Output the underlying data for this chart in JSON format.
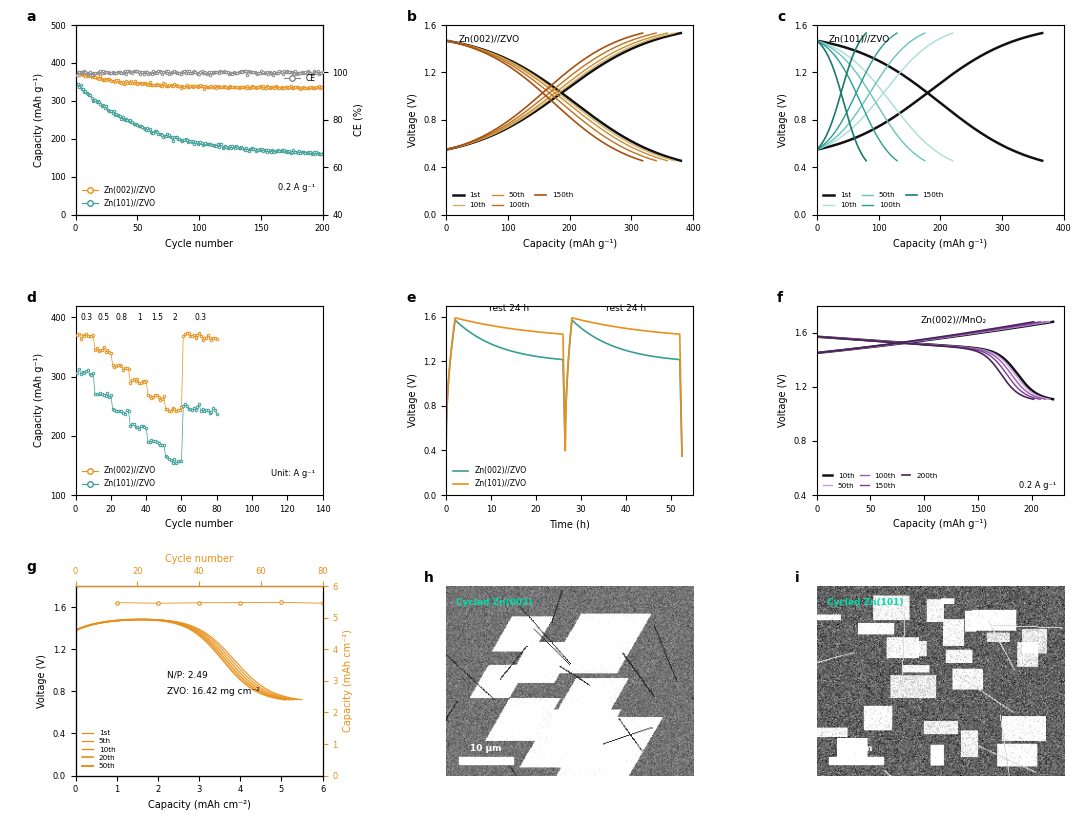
{
  "colors": {
    "orange": "#E8901A",
    "teal": "#3A9E96",
    "gray": "#888888",
    "black": "#111111"
  },
  "panel_a": {
    "ylabel_left": "Capacity (mAh g⁻¹)",
    "ylabel_right": "CE (%)",
    "xlabel": "Cycle number",
    "label1": "Zn(002)//ZVO",
    "label2": "Zn(101)//ZVO",
    "annotation": "0.2 A g⁻¹"
  },
  "panel_b": {
    "title": "Zn(002)//ZVO",
    "xlabel": "Capacity (mAh g⁻¹)",
    "ylabel": "Voltage (V)",
    "colors_cycles": [
      "#111111",
      "#D4B070",
      "#C89030",
      "#C07018",
      "#A85010"
    ],
    "labels": [
      "1st",
      "10th",
      "50th",
      "100th",
      "150th"
    ],
    "x_maxes": [
      380,
      370,
      358,
      340,
      318
    ]
  },
  "panel_c": {
    "title": "Zn(101)//ZVO",
    "xlabel": "Capacity (mAh g⁻¹)",
    "ylabel": "Voltage (V)",
    "colors_cycles": [
      "#111111",
      "#A8DDD8",
      "#68C4BC",
      "#2A9D8F",
      "#1A7A6E"
    ],
    "labels": [
      "1st",
      "10th",
      "50th",
      "100th",
      "150th"
    ],
    "x_maxes": [
      365,
      220,
      175,
      130,
      80
    ]
  },
  "panel_d": {
    "xlabel": "Cycle number",
    "ylabel": "Capacity (mAh g⁻¹)",
    "annotation": "Unit: A g⁻¹",
    "label1": "Zn(002)//ZVO",
    "label2": "Zn(101)//ZVO"
  },
  "panel_e": {
    "xlabel": "Time (h)",
    "ylabel": "Voltage (V)",
    "label1": "Zn(002)//ZVO",
    "label2": "Zn(101)//ZVO"
  },
  "panel_f": {
    "xlabel": "Capacity (mAh g⁻¹)",
    "ylabel": "Voltage (V)",
    "title": "Zn(002)//MnO₂",
    "annotation": "0.2 A g⁻¹",
    "colors_cycles": [
      "#111111",
      "#C9A0DC",
      "#9B59B6",
      "#7D3C98",
      "#4A235A"
    ],
    "labels": [
      "10th",
      "50th",
      "100th",
      "150th",
      "200th"
    ],
    "x_maxes": [
      220,
      217,
      213,
      208,
      202
    ]
  },
  "panel_g": {
    "xlabel_bottom": "Capacity (mAh cm⁻²)",
    "xlabel_top": "Cycle number",
    "ylabel_left": "Voltage (V)",
    "ylabel_right": "Capacity (mAh cm⁻²)",
    "ann1": "N/P: 2.49",
    "ann2": "ZVO: 16.42 mg cm⁻²",
    "colors_cycles": [
      "#F5E0B0",
      "#E8C870",
      "#D4A830",
      "#C89018",
      "#B87010"
    ],
    "labels": [
      "1st",
      "5th",
      "10th",
      "20th",
      "50th"
    ],
    "x_maxes": [
      5.5,
      5.4,
      5.3,
      5.2,
      5.1
    ]
  }
}
